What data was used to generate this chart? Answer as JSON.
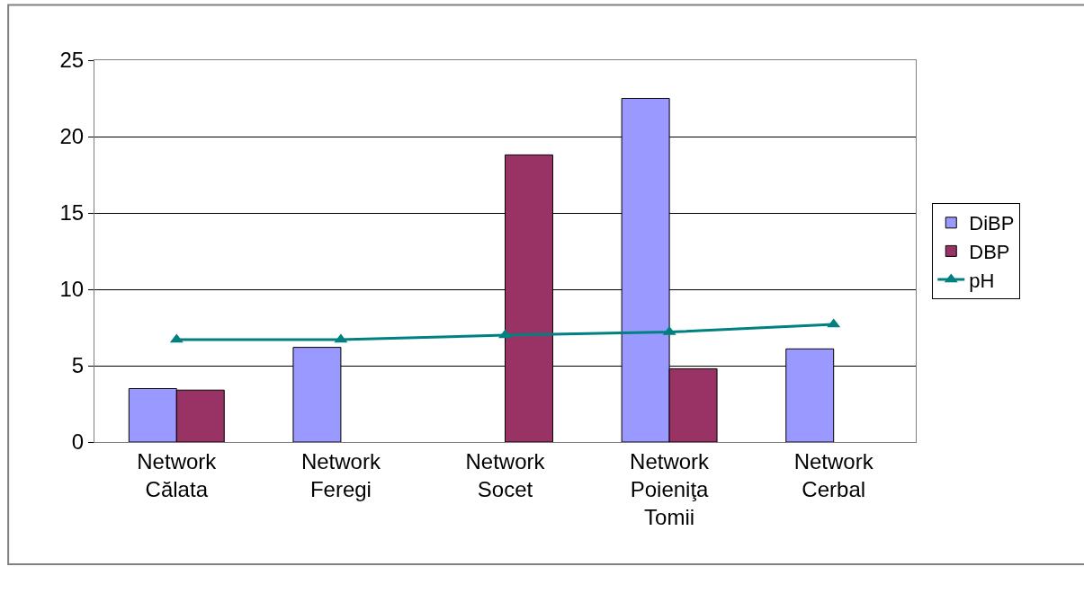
{
  "chart_data": {
    "type": "bar",
    "categories": [
      "Network Călata",
      "Network Feregi",
      "Network Socet",
      "Network Poieniţa Tomii",
      "Network Cerbal"
    ],
    "series": [
      {
        "name": "DiBP",
        "color": "#9999ff",
        "values": [
          3.5,
          6.2,
          null,
          22.5,
          6.1
        ]
      },
      {
        "name": "DBP",
        "color": "#993366",
        "values": [
          3.4,
          null,
          18.8,
          4.8,
          null
        ]
      },
      {
        "name": "pH",
        "type": "line",
        "color": "#008080",
        "marker": "triangle",
        "values": [
          6.7,
          6.7,
          7.0,
          7.2,
          7.7
        ]
      }
    ],
    "ylim": [
      0,
      25
    ],
    "yticks": [
      0,
      5,
      10,
      15,
      20,
      25
    ],
    "grid": "y",
    "legend": "right"
  }
}
